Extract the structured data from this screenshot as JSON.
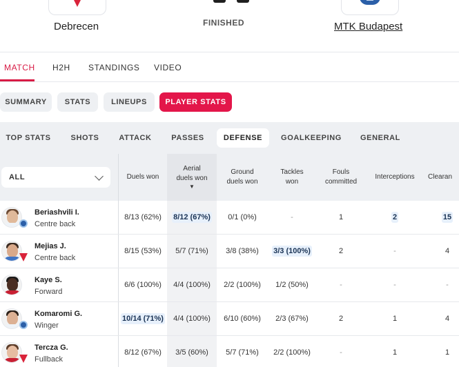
{
  "header": {
    "home_team": "Debrecen",
    "away_team": "MTK Budapest",
    "status": "FINISHED"
  },
  "main_tabs": [
    "MATCH",
    "H2H",
    "STANDINGS",
    "VIDEO"
  ],
  "sub_tabs": [
    "SUMMARY",
    "STATS",
    "LINEUPS",
    "PLAYER STATS"
  ],
  "stat_tabs": [
    "TOP STATS",
    "SHOTS",
    "ATTACK",
    "PASSES",
    "DEFENSE",
    "GOALKEEPING",
    "GENERAL"
  ],
  "filter": {
    "value": "ALL"
  },
  "columns": {
    "duels_won": "Duels won",
    "aerial_line1": "Aerial",
    "aerial_line2": "duels won",
    "aerial_sort": "▼",
    "ground_line1": "Ground",
    "ground_line2": "duels won",
    "tackles_line1": "Tackles",
    "tackles_line2": "won",
    "fouls_line1": "Fouls",
    "fouls_line2": "committed",
    "interceptions": "Interceptions",
    "clearances": "Clearan"
  },
  "players": [
    {
      "name": "Beriashvili I.",
      "position": "Centre back",
      "duels_won": "8/13 (62%)",
      "aerial": "8/12 (67%)",
      "ground": "0/1 (0%)",
      "tackles": "-",
      "fouls": "1",
      "interceptions": "2",
      "clearances": "15"
    },
    {
      "name": "Mejias J.",
      "position": "Centre back",
      "duels_won": "8/15 (53%)",
      "aerial": "5/7 (71%)",
      "ground": "3/8 (38%)",
      "tackles": "3/3 (100%)",
      "fouls": "2",
      "interceptions": "-",
      "clearances": "4"
    },
    {
      "name": "Kaye S.",
      "position": "Forward",
      "duels_won": "6/6 (100%)",
      "aerial": "4/4 (100%)",
      "ground": "2/2 (100%)",
      "tackles": "1/2 (50%)",
      "fouls": "-",
      "interceptions": "-",
      "clearances": "-"
    },
    {
      "name": "Komaromi G.",
      "position": "Winger",
      "duels_won": "10/14 (71%)",
      "aerial": "4/4 (100%)",
      "ground": "6/10 (60%)",
      "tackles": "2/3 (67%)",
      "fouls": "2",
      "interceptions": "1",
      "clearances": "4"
    },
    {
      "name": "Tercza G.",
      "position": "Fullback",
      "duels_won": "8/12 (67%)",
      "aerial": "3/5 (60%)",
      "ground": "5/7 (71%)",
      "tackles": "2/2 (100%)",
      "fouls": "-",
      "interceptions": "1",
      "clearances": "1"
    }
  ],
  "colors": {
    "accent": "#e3164a",
    "highlight": "#e7f0fb"
  }
}
